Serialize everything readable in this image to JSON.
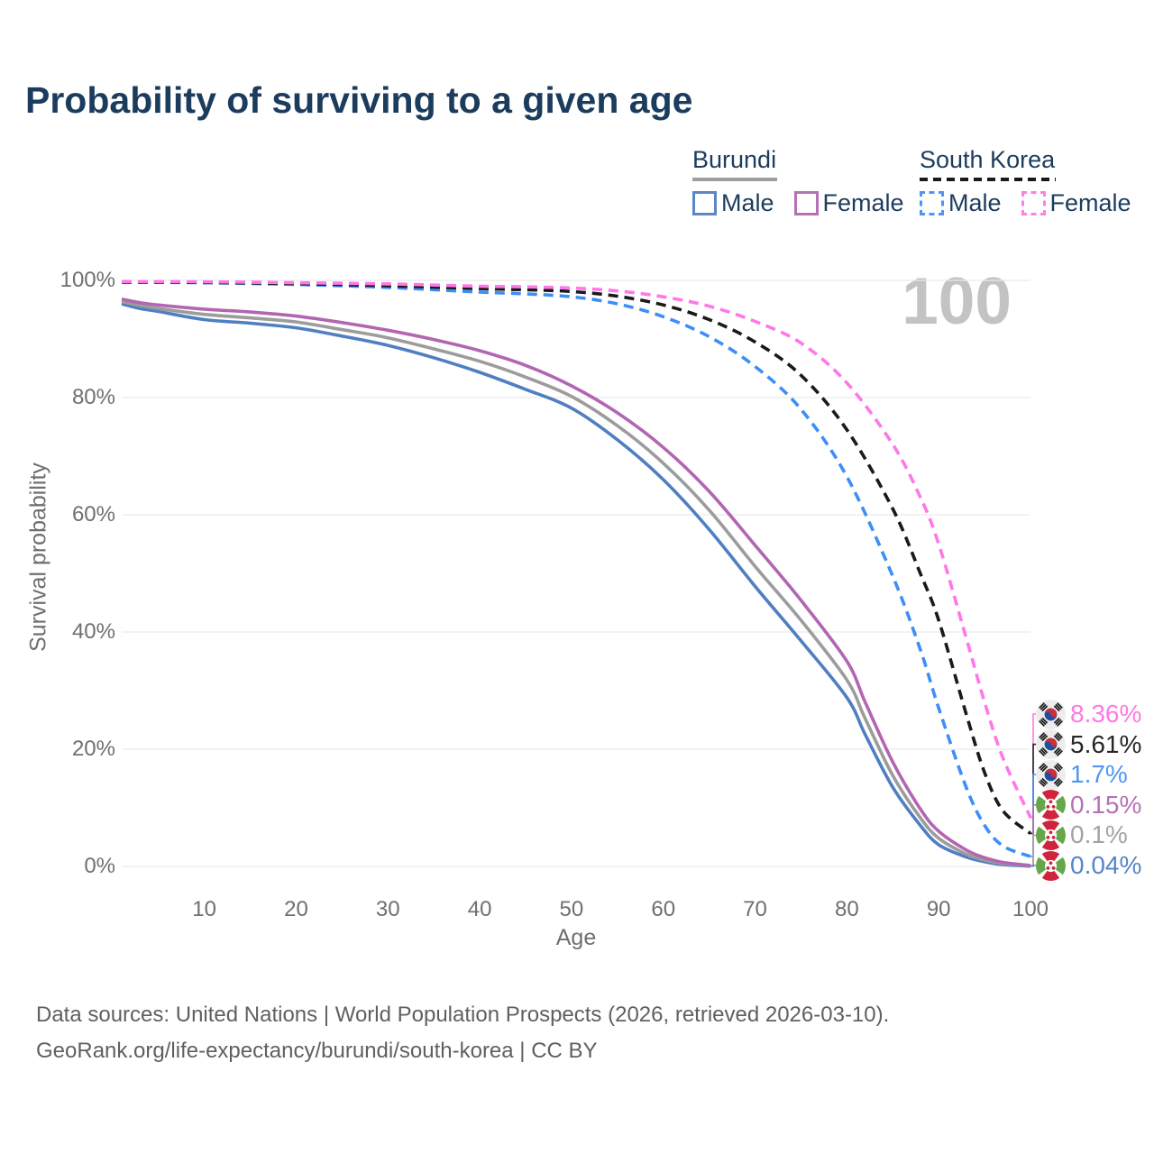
{
  "title": "Probability of surviving to a given age",
  "watermark": "100",
  "legend": {
    "groups": [
      {
        "name": "Burundi",
        "underline_style": "solid",
        "underline_color": "#9e9e9e",
        "items": [
          {
            "label": "Male",
            "color": "#5b87c5",
            "dashed": false
          },
          {
            "label": "Female",
            "color": "#b671b3",
            "dashed": false
          }
        ]
      },
      {
        "name": "South Korea",
        "underline_style": "dashed",
        "underline_color": "#1a1a1a",
        "items": [
          {
            "label": "Male",
            "color": "#4d94f7",
            "dashed": true
          },
          {
            "label": "Female",
            "color": "#ff80e5",
            "dashed": true
          }
        ]
      }
    ]
  },
  "chart_data": {
    "type": "line",
    "title": "Probability of surviving to a given age",
    "xlabel": "Age",
    "ylabel": "Survival probability",
    "xlim": [
      1,
      100
    ],
    "ylim": [
      0,
      100
    ],
    "grid": true,
    "x_ticks": [
      {
        "value": 10,
        "label": "10"
      },
      {
        "value": 20,
        "label": "20"
      },
      {
        "value": 30,
        "label": "30"
      },
      {
        "value": 40,
        "label": "40"
      },
      {
        "value": 50,
        "label": "50"
      },
      {
        "value": 60,
        "label": "60"
      },
      {
        "value": 70,
        "label": "70"
      },
      {
        "value": 80,
        "label": "80"
      },
      {
        "value": 90,
        "label": "90"
      },
      {
        "value": 100,
        "label": "100"
      }
    ],
    "y_ticks": [
      {
        "value": 0,
        "label": "0%"
      },
      {
        "value": 20,
        "label": "20%"
      },
      {
        "value": 40,
        "label": "40%"
      },
      {
        "value": 60,
        "label": "60%"
      },
      {
        "value": 80,
        "label": "80%"
      },
      {
        "value": 100,
        "label": "100%"
      }
    ],
    "series": [
      {
        "id": "burundi-male",
        "country": "Burundi",
        "sex": "male",
        "dashed": false,
        "color": "#4f7fc2",
        "label_color": "#5585c8",
        "flag": "bi",
        "end_label": "0.04%",
        "end_value": 0.04,
        "points": [
          [
            1,
            96.0
          ],
          [
            3,
            95.2
          ],
          [
            5,
            94.7
          ],
          [
            10,
            93.3
          ],
          [
            15,
            92.7
          ],
          [
            20,
            91.9
          ],
          [
            25,
            90.5
          ],
          [
            30,
            88.9
          ],
          [
            35,
            86.8
          ],
          [
            40,
            84.3
          ],
          [
            45,
            81.4
          ],
          [
            50,
            78.2
          ],
          [
            55,
            72.8
          ],
          [
            60,
            66.0
          ],
          [
            65,
            57.5
          ],
          [
            70,
            47.8
          ],
          [
            75,
            38.5
          ],
          [
            80,
            28.8
          ],
          [
            82,
            22.5
          ],
          [
            85,
            13.5
          ],
          [
            88,
            7.0
          ],
          [
            90,
            3.7
          ],
          [
            93,
            1.6
          ],
          [
            95,
            0.8
          ],
          [
            97,
            0.3
          ],
          [
            100,
            0.04
          ]
        ]
      },
      {
        "id": "burundi-average",
        "country": "Burundi",
        "sex": "both",
        "dashed": false,
        "color": "#9c9c9c",
        "label_color": "#a3a3a3",
        "flag": "bi",
        "end_label": "0.1%",
        "end_value": 0.1,
        "points": [
          [
            1,
            96.4
          ],
          [
            3,
            95.7
          ],
          [
            5,
            95.2
          ],
          [
            10,
            94.2
          ],
          [
            15,
            93.6
          ],
          [
            20,
            92.9
          ],
          [
            25,
            91.6
          ],
          [
            30,
            90.2
          ],
          [
            35,
            88.3
          ],
          [
            40,
            86.2
          ],
          [
            45,
            83.5
          ],
          [
            50,
            80.2
          ],
          [
            55,
            75.2
          ],
          [
            60,
            68.8
          ],
          [
            65,
            60.8
          ],
          [
            70,
            51.2
          ],
          [
            75,
            42.0
          ],
          [
            80,
            31.8
          ],
          [
            82,
            25.2
          ],
          [
            85,
            15.5
          ],
          [
            88,
            8.3
          ],
          [
            90,
            4.8
          ],
          [
            93,
            2.1
          ],
          [
            95,
            1.1
          ],
          [
            97,
            0.5
          ],
          [
            100,
            0.1
          ]
        ]
      },
      {
        "id": "burundi-female",
        "country": "Burundi",
        "sex": "female",
        "dashed": false,
        "color": "#b266b2",
        "label_color": "#b671b3",
        "flag": "bi",
        "end_label": "0.15%",
        "end_value": 0.15,
        "points": [
          [
            1,
            96.8
          ],
          [
            3,
            96.2
          ],
          [
            5,
            95.8
          ],
          [
            10,
            95.1
          ],
          [
            15,
            94.6
          ],
          [
            20,
            93.9
          ],
          [
            25,
            92.8
          ],
          [
            30,
            91.5
          ],
          [
            35,
            89.9
          ],
          [
            40,
            88.0
          ],
          [
            45,
            85.5
          ],
          [
            50,
            82.0
          ],
          [
            55,
            77.4
          ],
          [
            60,
            71.5
          ],
          [
            65,
            64.0
          ],
          [
            70,
            54.8
          ],
          [
            75,
            45.4
          ],
          [
            80,
            35.0
          ],
          [
            82,
            28.0
          ],
          [
            85,
            17.8
          ],
          [
            88,
            9.8
          ],
          [
            90,
            6.0
          ],
          [
            93,
            2.8
          ],
          [
            95,
            1.5
          ],
          [
            97,
            0.7
          ],
          [
            100,
            0.15
          ]
        ]
      },
      {
        "id": "south-korea-male",
        "country": "South Korea",
        "sex": "male",
        "dashed": true,
        "color": "#3e8ef7",
        "label_color": "#4e97f5",
        "flag": "kr",
        "end_label": "1.7%",
        "end_value": 1.7,
        "points": [
          [
            1,
            99.7
          ],
          [
            10,
            99.6
          ],
          [
            20,
            99.3
          ],
          [
            30,
            98.8
          ],
          [
            40,
            98.0
          ],
          [
            45,
            97.7
          ],
          [
            50,
            97.2
          ],
          [
            55,
            96.0
          ],
          [
            60,
            93.8
          ],
          [
            65,
            90.4
          ],
          [
            70,
            85.3
          ],
          [
            75,
            78.0
          ],
          [
            80,
            66.5
          ],
          [
            85,
            49.5
          ],
          [
            88,
            37.0
          ],
          [
            90,
            27.0
          ],
          [
            93,
            13.5
          ],
          [
            95,
            7.0
          ],
          [
            97,
            3.5
          ],
          [
            100,
            1.7
          ]
        ]
      },
      {
        "id": "south-korea-average",
        "country": "South Korea",
        "sex": "both",
        "dashed": true,
        "color": "#1a1a1a",
        "label_color": "#262626",
        "flag": "kr",
        "end_label": "5.61%",
        "end_value": 5.61,
        "points": [
          [
            1,
            99.7
          ],
          [
            10,
            99.65
          ],
          [
            20,
            99.45
          ],
          [
            30,
            99.1
          ],
          [
            40,
            98.6
          ],
          [
            45,
            98.4
          ],
          [
            50,
            98.1
          ],
          [
            55,
            97.3
          ],
          [
            60,
            95.8
          ],
          [
            65,
            93.3
          ],
          [
            70,
            89.5
          ],
          [
            75,
            83.8
          ],
          [
            80,
            74.5
          ],
          [
            85,
            61.0
          ],
          [
            88,
            50.0
          ],
          [
            90,
            42.0
          ],
          [
            93,
            26.0
          ],
          [
            95,
            16.0
          ],
          [
            97,
            9.5
          ],
          [
            100,
            5.61
          ]
        ]
      },
      {
        "id": "south-korea-female",
        "country": "South Korea",
        "sex": "female",
        "dashed": true,
        "color": "#ff77e8",
        "label_color": "#ff79e1",
        "flag": "kr",
        "end_label": "8.36%",
        "end_value": 8.36,
        "points": [
          [
            1,
            99.8
          ],
          [
            10,
            99.75
          ],
          [
            20,
            99.6
          ],
          [
            30,
            99.4
          ],
          [
            40,
            99.0
          ],
          [
            45,
            98.9
          ],
          [
            50,
            98.7
          ],
          [
            55,
            98.2
          ],
          [
            60,
            97.2
          ],
          [
            65,
            95.6
          ],
          [
            70,
            93.0
          ],
          [
            75,
            89.3
          ],
          [
            80,
            82.5
          ],
          [
            85,
            72.0
          ],
          [
            88,
            63.0
          ],
          [
            90,
            55.0
          ],
          [
            93,
            39.0
          ],
          [
            95,
            28.0
          ],
          [
            97,
            18.5
          ],
          [
            100,
            8.36
          ]
        ]
      }
    ]
  },
  "footer": {
    "line1": "Data sources: United Nations | World Population Prospects (2026, retrieved 2026-03-10).",
    "line2": "GeoRank.org/life-expectancy/burundi/south-korea | CC BY"
  }
}
